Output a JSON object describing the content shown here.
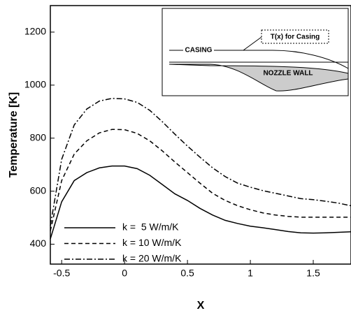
{
  "chart_data": {
    "type": "line",
    "xlabel": "X",
    "ylabel": "Temperature [K]",
    "x": [
      -0.59,
      -0.5,
      -0.4,
      -0.3,
      -0.2,
      -0.1,
      0,
      0.1,
      0.2,
      0.3,
      0.4,
      0.5,
      0.6,
      0.7,
      0.8,
      0.9,
      1.0,
      1.1,
      1.2,
      1.3,
      1.4,
      1.5,
      1.6,
      1.7,
      1.8
    ],
    "series": [
      {
        "name": "k =  5 W/m/K",
        "color": "#000000",
        "style": "solid",
        "values": [
          420,
          560,
          640,
          670,
          688,
          695,
          695,
          685,
          660,
          625,
          590,
          565,
          535,
          510,
          490,
          478,
          468,
          462,
          455,
          448,
          443,
          442,
          443,
          445,
          447
        ]
      },
      {
        "name": "k = 10 W/m/K",
        "color": "#000000",
        "style": "dashed",
        "values": [
          450,
          640,
          740,
          790,
          820,
          833,
          832,
          818,
          790,
          752,
          710,
          670,
          630,
          592,
          565,
          545,
          530,
          518,
          510,
          505,
          502,
          502,
          502,
          502,
          502
        ]
      },
      {
        "name": "k = 20 W/m/K",
        "color": "#000000",
        "style": "dashdot",
        "values": [
          470,
          720,
          850,
          910,
          940,
          950,
          948,
          935,
          905,
          862,
          815,
          770,
          728,
          688,
          655,
          630,
          615,
          602,
          592,
          582,
          572,
          568,
          562,
          555,
          545
        ]
      }
    ],
    "xlim": [
      -0.59,
      1.8
    ],
    "xticks": [
      -0.5,
      0,
      0.5,
      1,
      1.5
    ],
    "ylim": [
      325,
      1300
    ],
    "yticks": [
      400,
      600,
      800,
      1000,
      1200
    ],
    "legend": "lower-left",
    "annotations": [
      "CASING",
      "T(x) for Casing",
      "NOZZLE WALL"
    ]
  }
}
